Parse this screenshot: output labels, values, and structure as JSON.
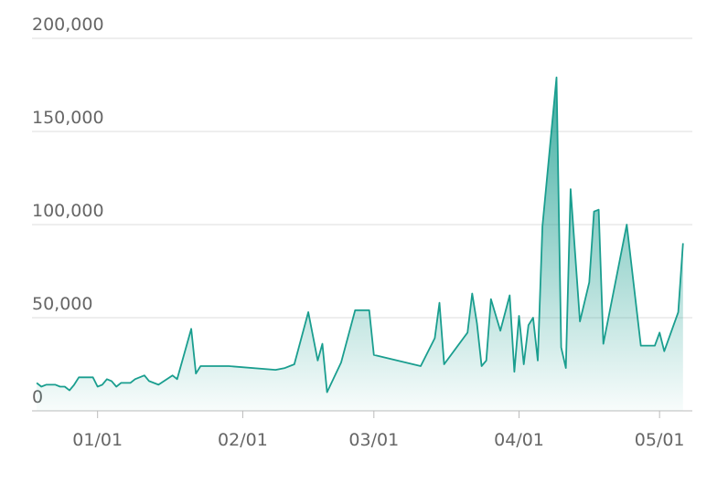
{
  "chart_data": {
    "type": "area",
    "x": [
      -13,
      -12,
      -11,
      -10,
      -9,
      -8,
      -7,
      -6,
      -5,
      -4,
      -2,
      -1,
      0,
      1,
      2,
      3,
      4,
      5,
      7,
      8,
      10,
      11,
      13,
      16,
      17,
      20,
      21,
      22,
      28,
      38,
      40,
      42,
      45,
      47,
      48,
      49,
      52,
      55,
      58,
      59,
      69,
      72,
      73,
      74,
      79,
      80,
      81,
      82,
      83,
      84,
      86,
      88,
      89,
      90,
      91,
      92,
      93,
      94,
      95,
      98,
      99,
      100,
      101,
      103,
      105,
      106,
      107,
      108,
      113,
      116,
      119,
      120,
      121,
      124,
      125
    ],
    "values": [
      15000,
      13000,
      14000,
      14000,
      14000,
      13000,
      13000,
      11000,
      14000,
      18000,
      18000,
      18000,
      13000,
      14000,
      17000,
      16000,
      13000,
      15000,
      15000,
      17000,
      19000,
      16000,
      14000,
      19000,
      17000,
      44000,
      20000,
      24000,
      24000,
      22000,
      23000,
      25000,
      53000,
      27000,
      36000,
      10000,
      26000,
      54000,
      54000,
      30000,
      24000,
      39000,
      58000,
      25000,
      42000,
      63000,
      47000,
      24000,
      27000,
      60000,
      43000,
      62000,
      21000,
      51000,
      25000,
      46000,
      50000,
      27000,
      99000,
      179000,
      34000,
      23000,
      119000,
      48000,
      69000,
      107000,
      108000,
      36000,
      100000,
      35000,
      35000,
      42000,
      32000,
      53000,
      90000
    ],
    "color": "#1a9e8f",
    "xlim": [
      -14,
      127
    ],
    "xticks": [
      {
        "value": 0,
        "label": "01/01"
      },
      {
        "value": 31,
        "label": "02/01"
      },
      {
        "value": 59,
        "label": "03/01"
      },
      {
        "value": 90,
        "label": "04/01"
      },
      {
        "value": 120,
        "label": "05/01"
      }
    ],
    "ylim": [
      0,
      200000
    ],
    "yticks": [
      0,
      {
        "value": 50000,
        "label": "50,000"
      },
      {
        "value": 100000,
        "label": "100,000"
      },
      {
        "value": 150000,
        "label": "150,000"
      },
      {
        "value": 200000,
        "label": "200,000"
      }
    ],
    "grid": true
  }
}
